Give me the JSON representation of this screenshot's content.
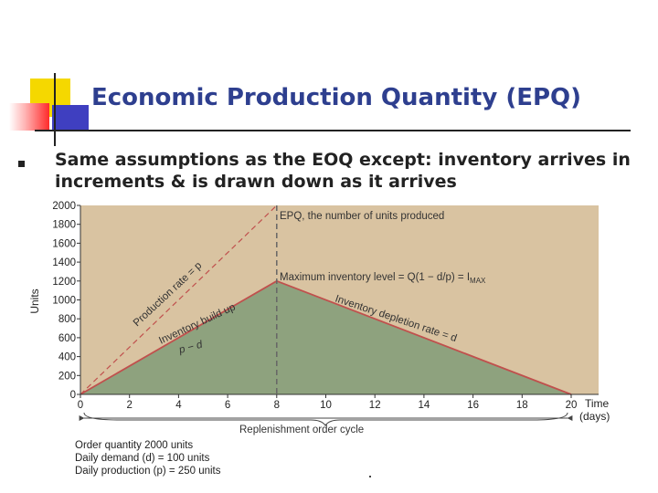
{
  "slide": {
    "title": "Economic Production Quantity (EPQ)",
    "bullet": "Same assumptions as the EOQ except: inventory arrives in increments & is drawn down as it arrives"
  },
  "colors": {
    "title": "#2e3f8f",
    "plot_background": "#d9c3a1",
    "inventory_fill": "#8ea27e",
    "inventory_line": "#c0504d",
    "production_line": "#c0504d"
  },
  "chart_data": {
    "type": "area",
    "ylabel": "Units",
    "xlabel": "Time (days)",
    "xlabel_lines": [
      "Time",
      "(days)"
    ],
    "xlim": [
      0,
      20
    ],
    "ylim": [
      0,
      2000
    ],
    "x_ticks": [
      0,
      2,
      4,
      6,
      8,
      10,
      12,
      14,
      16,
      18,
      20
    ],
    "y_ticks": [
      0,
      200,
      400,
      600,
      800,
      1000,
      1200,
      1400,
      1600,
      1800,
      2000
    ],
    "series": [
      {
        "values": [
          [
            0,
            0
          ],
          [
            8,
            1200
          ],
          [
            20,
            0
          ]
        ]
      },
      {
        "values": [
          [
            0,
            0
          ],
          [
            8,
            2000
          ]
        ]
      }
    ],
    "vertical_marker_x": 8,
    "annotations": {
      "epq": "EPQ, the number of units produced",
      "max_inventory": "Maximum inventory level = Q(1 − d/p) = I",
      "max_inventory_subscript": "MAX",
      "production_rate": "Production rate = p",
      "build_up": "Inventory build up",
      "p_minus_d": "p − d",
      "depletion": "Inventory depletion rate = d",
      "cycle": "Replenishment order cycle"
    },
    "notes": [
      "Order quantity 2000 units",
      "Daily demand (d) = 100 units",
      "Daily production (p) = 250 units"
    ]
  }
}
